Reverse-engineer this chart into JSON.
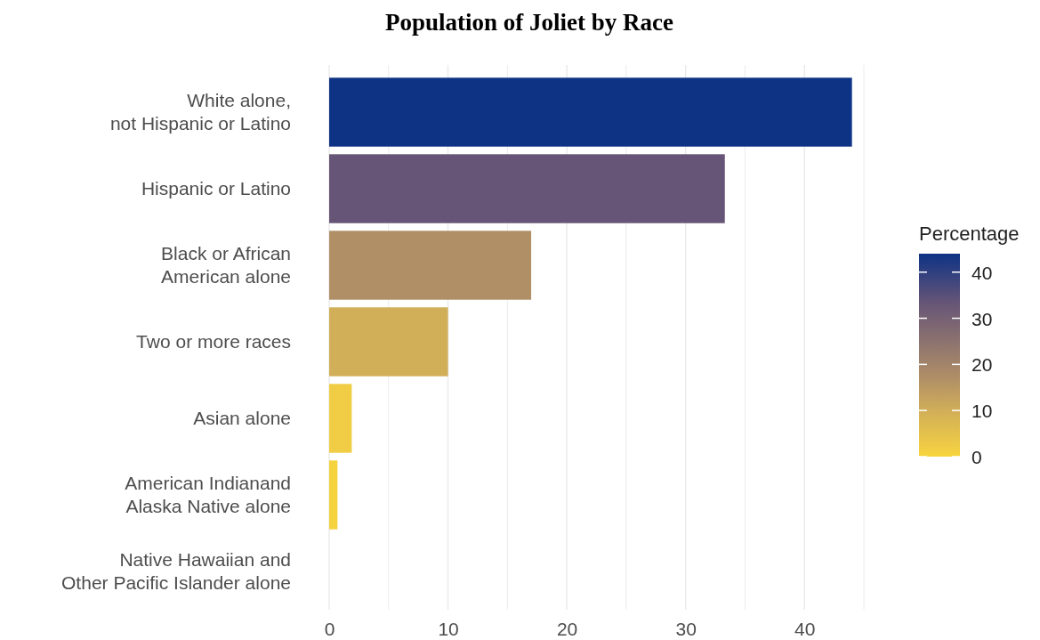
{
  "chart_data": {
    "type": "bar",
    "orientation": "horizontal",
    "title": "Population of Joliet by Race",
    "categories": [
      "White alone,\nnot Hispanic or Latino",
      "Hispanic or Latino",
      "Black or African\nAmerican alone",
      "Two or more races",
      "Asian alone",
      "American Indianand\nAlaska Native alone",
      "Native Hawaiian and\nOther Pacific Islander alone"
    ],
    "values": [
      44.0,
      33.3,
      17.0,
      10.0,
      1.9,
      0.7,
      0.0
    ],
    "colors": [
      "#0e3384",
      "#675577",
      "#b08f67",
      "#d1ae58",
      "#f0cd44",
      "#f5d33f",
      "#f7d53c"
    ],
    "xlim": [
      0,
      45
    ],
    "xticks": [
      0,
      {
        "value": 5,
        "label": null
      },
      10,
      {
        "value": 15,
        "label": null
      },
      20,
      {
        "value": 25,
        "label": null
      },
      30,
      {
        "value": 35,
        "label": null
      },
      40,
      {
        "value": 45,
        "label": null
      }
    ],
    "grid": "x",
    "clabel": "Percentage",
    "clim": [
      0,
      44
    ],
    "cticks": [
      0,
      10,
      20,
      30,
      40
    ]
  }
}
